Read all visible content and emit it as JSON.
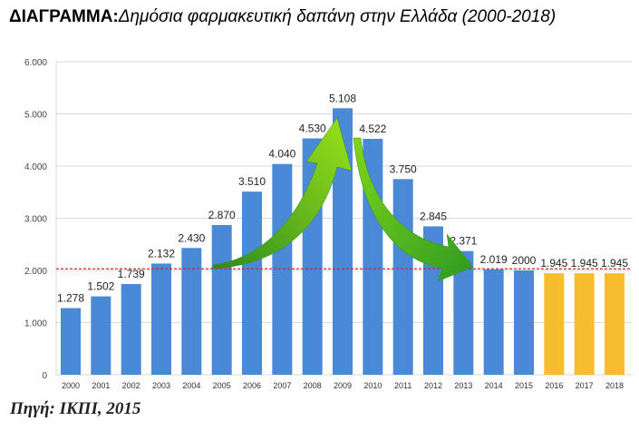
{
  "title": {
    "prefix": "ΔΙΑΓΡΑΜΜΑ:",
    "text": "Δημόσια  φαρμακευτική δαπάνη στην Ελλάδα (2000-2018)"
  },
  "source": "Πηγή: ΙΚΠΙ, 2015",
  "chart_data": {
    "type": "bar",
    "title": "ΔΙΑΓΡΑΜΜΑ: Δημόσια φαρμακευτική δαπάνη στην Ελλάδα (2000-2018)",
    "xlabel": "",
    "ylabel": "",
    "ylim": [
      0,
      6000
    ],
    "yticks": [
      0,
      1000,
      2000,
      3000,
      4000,
      5000,
      6000
    ],
    "ytick_labels": [
      "0",
      "1.000",
      "2.000",
      "3.000",
      "4.000",
      "5.000",
      "6.000"
    ],
    "grid": true,
    "categories": [
      "2000",
      "2001",
      "2002",
      "2003",
      "2004",
      "2005",
      "2006",
      "2007",
      "2008",
      "2009",
      "2010",
      "2011",
      "2012",
      "2013",
      "2014",
      "2015",
      "2016",
      "2017",
      "2018"
    ],
    "values": [
      1278,
      1502,
      1739,
      2132,
      2430,
      2870,
      3510,
      4040,
      4530,
      5108,
      4522,
      3750,
      2845,
      2371,
      2019,
      2000,
      1945,
      1945,
      1945
    ],
    "data_labels": [
      "1.278",
      "1.502",
      "1.739",
      "2.132",
      "2.430",
      "2.870",
      "3.510",
      "4.040",
      "4.530",
      "5.108",
      "4.522",
      "3.750",
      "2.845",
      "2.371",
      "2.019",
      "2000",
      "1.945",
      "1.945",
      "1.945"
    ],
    "colors": {
      "actual": "#4a89d6",
      "projected": "#f6be2e",
      "reference_line": "#e02020",
      "arrows": "#6cc418"
    },
    "projected_from": "2016",
    "reference_line_value": 2030,
    "annotations": [
      "green arrow rising 2005→2009",
      "green arrow falling 2010→2014"
    ]
  }
}
